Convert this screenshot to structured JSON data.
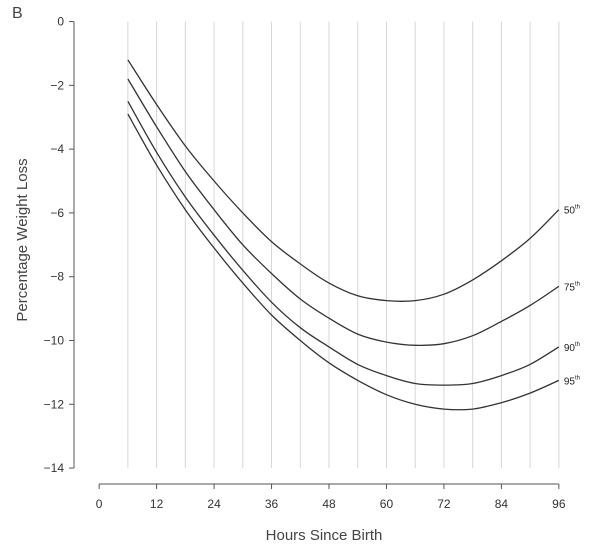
{
  "panel_label": "B",
  "chart_data": {
    "type": "line",
    "xlabel": "Hours Since Birth",
    "ylabel": "Percentage Weight Loss",
    "x_ticks": [
      0,
      12,
      24,
      36,
      48,
      60,
      72,
      84,
      96
    ],
    "y_ticks": [
      0,
      -2,
      -4,
      -6,
      -8,
      -10,
      -12,
      -14
    ],
    "x_gridlines": [
      6,
      12,
      18,
      24,
      30,
      36,
      42,
      48,
      54,
      60,
      66,
      72,
      78,
      84,
      90,
      96
    ],
    "xlim": [
      -4,
      100
    ],
    "ylim": [
      -14.5,
      0.3
    ],
    "grid": "vertical",
    "series": [
      {
        "name": "50",
        "suffix": "th",
        "x": [
          6,
          12,
          18,
          24,
          30,
          36,
          42,
          48,
          54,
          60,
          66,
          72,
          78,
          84,
          90,
          96
        ],
        "values": [
          -1.2,
          -2.6,
          -3.9,
          -5.0,
          -6.0,
          -6.9,
          -7.6,
          -8.2,
          -8.6,
          -8.75,
          -8.75,
          -8.55,
          -8.1,
          -7.5,
          -6.8,
          -5.9
        ]
      },
      {
        "name": "75",
        "suffix": "th",
        "x": [
          6,
          12,
          18,
          24,
          30,
          36,
          42,
          48,
          54,
          60,
          66,
          72,
          78,
          84,
          90,
          96
        ],
        "values": [
          -1.8,
          -3.3,
          -4.7,
          -5.9,
          -7.0,
          -7.9,
          -8.7,
          -9.3,
          -9.8,
          -10.05,
          -10.15,
          -10.1,
          -9.85,
          -9.4,
          -8.9,
          -8.3
        ]
      },
      {
        "name": "90",
        "suffix": "th",
        "x": [
          6,
          12,
          18,
          24,
          30,
          36,
          42,
          48,
          54,
          60,
          66,
          72,
          78,
          84,
          90,
          96
        ],
        "values": [
          -2.5,
          -4.1,
          -5.5,
          -6.7,
          -7.8,
          -8.8,
          -9.6,
          -10.2,
          -10.75,
          -11.1,
          -11.35,
          -11.4,
          -11.35,
          -11.1,
          -10.75,
          -10.2
        ]
      },
      {
        "name": "95",
        "suffix": "th",
        "x": [
          6,
          12,
          18,
          24,
          30,
          36,
          42,
          48,
          54,
          60,
          66,
          72,
          78,
          84,
          90,
          96
        ],
        "values": [
          -2.9,
          -4.5,
          -5.9,
          -7.1,
          -8.2,
          -9.2,
          -10.0,
          -10.7,
          -11.25,
          -11.7,
          -12.0,
          -12.15,
          -12.15,
          -11.95,
          -11.65,
          -11.25
        ]
      }
    ]
  }
}
